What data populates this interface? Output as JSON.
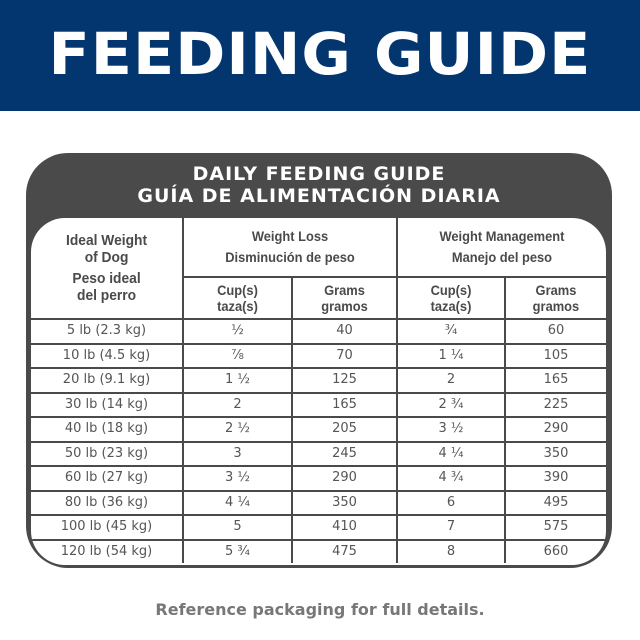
{
  "banner": {
    "title": "FEEDING GUIDE",
    "background_color": "#03356f"
  },
  "panel": {
    "title_en": "DAILY FEEDING GUIDE",
    "title_es": "GUÍA DE ALIMENTACIÓN DIARIA",
    "background_color": "#4a4a4a"
  },
  "table": {
    "headers": {
      "weight": {
        "en_line1": "Ideal Weight",
        "en_line2": "of Dog",
        "es_line1": "Peso ideal",
        "es_line2": "del perro"
      },
      "weight_loss": {
        "en": "Weight Loss",
        "es": "Disminución de peso"
      },
      "weight_management": {
        "en": "Weight Management",
        "es": "Manejo del peso"
      },
      "cups": {
        "en": "Cup(s)",
        "es": "taza(s)"
      },
      "grams": {
        "en": "Grams",
        "es": "gramos"
      }
    },
    "rows": [
      {
        "weight": "5 lb (2.3 kg)",
        "loss_cups": "½",
        "loss_grams": "40",
        "mgmt_cups": "¾",
        "mgmt_grams": "60"
      },
      {
        "weight": "10 lb (4.5 kg)",
        "loss_cups": "⅞",
        "loss_grams": "70",
        "mgmt_cups": "1 ¼",
        "mgmt_grams": "105"
      },
      {
        "weight": "20 lb (9.1 kg)",
        "loss_cups": "1 ½",
        "loss_grams": "125",
        "mgmt_cups": "2",
        "mgmt_grams": "165"
      },
      {
        "weight": "30 lb (14 kg)",
        "loss_cups": "2",
        "loss_grams": "165",
        "mgmt_cups": "2 ¾",
        "mgmt_grams": "225"
      },
      {
        "weight": "40 lb (18 kg)",
        "loss_cups": "2 ½",
        "loss_grams": "205",
        "mgmt_cups": "3 ½",
        "mgmt_grams": "290"
      },
      {
        "weight": "50 lb (23 kg)",
        "loss_cups": "3",
        "loss_grams": "245",
        "mgmt_cups": "4 ¼",
        "mgmt_grams": "350"
      },
      {
        "weight": "60 lb (27 kg)",
        "loss_cups": "3 ½",
        "loss_grams": "290",
        "mgmt_cups": "4 ¾",
        "mgmt_grams": "390"
      },
      {
        "weight": "80 lb (36 kg)",
        "loss_cups": "4 ¼",
        "loss_grams": "350",
        "mgmt_cups": "6",
        "mgmt_grams": "495"
      },
      {
        "weight": "100 lb (45 kg)",
        "loss_cups": "5",
        "loss_grams": "410",
        "mgmt_cups": "7",
        "mgmt_grams": "575"
      },
      {
        "weight": "120 lb (54 kg)",
        "loss_cups": "5 ¾",
        "loss_grams": "475",
        "mgmt_cups": "8",
        "mgmt_grams": "660"
      }
    ]
  },
  "footer": {
    "note": "Reference packaging for full details."
  }
}
